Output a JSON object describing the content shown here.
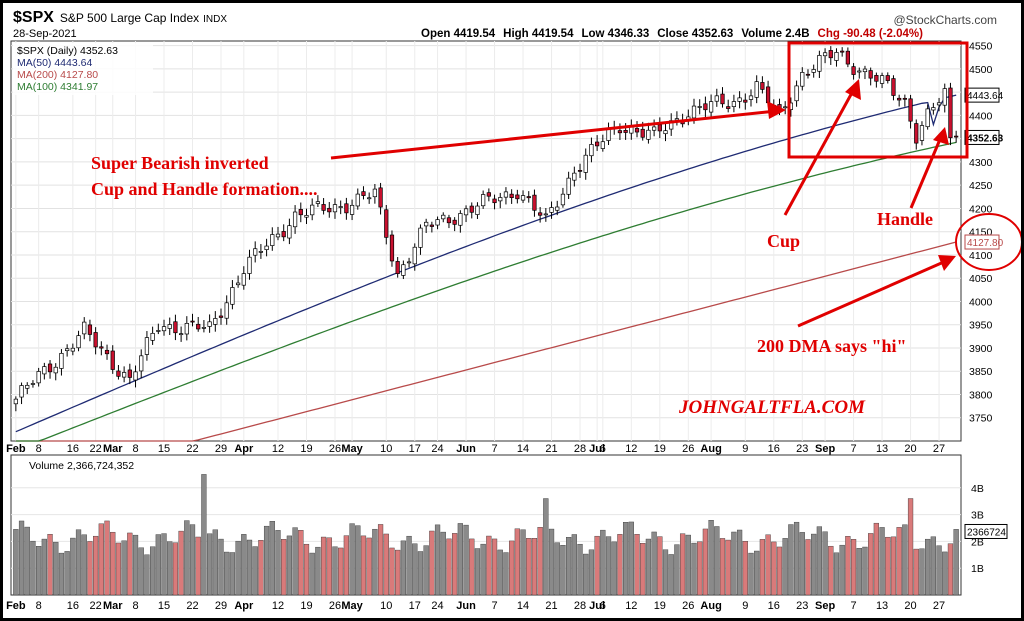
{
  "header": {
    "symbol": "$SPX",
    "name": "S&P 500 Large Cap Index",
    "exchange": "INDX",
    "date": "28-Sep-2021",
    "watermark": "@StockCharts.com",
    "open": "Open 4419.54",
    "high": "High 4419.54",
    "low": "Low 4346.33",
    "close": "Close 4352.63",
    "volume": "Volume 2.4B",
    "chg": "Chg -90.48 (-2.04%)"
  },
  "legend": {
    "price": "$SPX (Daily) 4352.63",
    "ma50": "MA(50) 4443.64",
    "ma200": "MA(200) 4127.80",
    "ma100": "MA(100) 4341.97",
    "volume": "Volume 2,366,724,352"
  },
  "annotations": {
    "pattern_line1": "Super Bearish inverted",
    "pattern_line2": "Cup and Handle formation....",
    "cup": "Cup",
    "handle": "Handle",
    "dma": "200 DMA says \"hi\"",
    "site": "JOHNGALTFLA.COM"
  },
  "colors": {
    "up": "#ffffff",
    "down": "#c8102e",
    "ma50": "#1f2b73",
    "ma100": "#2e7d32",
    "ma200": "#b84a4a",
    "annotation": "#e00000",
    "vol_up": "#8a8a8a",
    "vol_down": "#d97a7a"
  },
  "chart_data": {
    "type": "candlestick",
    "period": "daily",
    "ylim": [
      3700,
      4560
    ],
    "yticks": [
      3750,
      3800,
      3850,
      3900,
      3950,
      4000,
      4050,
      4100,
      4150,
      4200,
      4250,
      4300,
      4350,
      4400,
      4450,
      4500,
      4550
    ],
    "price_labels": [
      "4443.64",
      "4352.63",
      "4127.80"
    ],
    "x_labels": [
      {
        "label": "Feb",
        "bold": true
      },
      {
        "label": "8"
      },
      {
        "label": "16"
      },
      {
        "label": "22"
      },
      {
        "label": "Mar",
        "bold": true
      },
      {
        "label": "8"
      },
      {
        "label": "15"
      },
      {
        "label": "22"
      },
      {
        "label": "29"
      },
      {
        "label": "Apr",
        "bold": true
      },
      {
        "label": "12"
      },
      {
        "label": "19"
      },
      {
        "label": "26"
      },
      {
        "label": "May",
        "bold": true
      },
      {
        "label": "10"
      },
      {
        "label": "17"
      },
      {
        "label": "24"
      },
      {
        "label": "Jun",
        "bold": true
      },
      {
        "label": "7"
      },
      {
        "label": "14"
      },
      {
        "label": "21"
      },
      {
        "label": "28"
      },
      {
        "label": "Jul",
        "bold": true
      },
      {
        "label": "6"
      },
      {
        "label": "12"
      },
      {
        "label": "19"
      },
      {
        "label": "26"
      },
      {
        "label": "Aug",
        "bold": true
      },
      {
        "label": "9"
      },
      {
        "label": "16"
      },
      {
        "label": "23"
      },
      {
        "label": "Sep",
        "bold": true
      },
      {
        "label": "7"
      },
      {
        "label": "13"
      },
      {
        "label": "20"
      },
      {
        "label": "27"
      }
    ],
    "x_label_pos": [
      0,
      4,
      10,
      14,
      17,
      21,
      26,
      31,
      36,
      40,
      46,
      51,
      56,
      59,
      65,
      70,
      74,
      79,
      84,
      89,
      94,
      99,
      102,
      103,
      108,
      113,
      118,
      122,
      128,
      133,
      138,
      142,
      147,
      152,
      157,
      162
    ],
    "key_closes": [
      {
        "day": 0,
        "close": 3790
      },
      {
        "day": 12,
        "close": 3935
      },
      {
        "day": 20,
        "close": 3830
      },
      {
        "day": 25,
        "close": 3950
      },
      {
        "day": 34,
        "close": 3940
      },
      {
        "day": 40,
        "close": 4070
      },
      {
        "day": 49,
        "close": 4185
      },
      {
        "day": 58,
        "close": 4210
      },
      {
        "day": 63,
        "close": 4230
      },
      {
        "day": 67,
        "close": 4060
      },
      {
        "day": 72,
        "close": 4160
      },
      {
        "day": 80,
        "close": 4200
      },
      {
        "day": 88,
        "close": 4240
      },
      {
        "day": 93,
        "close": 4170
      },
      {
        "day": 98,
        "close": 4285
      },
      {
        "day": 106,
        "close": 4380
      },
      {
        "day": 112,
        "close": 4355
      },
      {
        "day": 118,
        "close": 4410
      },
      {
        "day": 126,
        "close": 4430
      },
      {
        "day": 130,
        "close": 4460
      },
      {
        "day": 134,
        "close": 4400
      },
      {
        "day": 138,
        "close": 4490
      },
      {
        "day": 144,
        "close": 4535
      },
      {
        "day": 148,
        "close": 4500
      },
      {
        "day": 153,
        "close": 4460
      },
      {
        "day": 156,
        "close": 4430
      },
      {
        "day": 158,
        "close": 4360
      },
      {
        "day": 160,
        "close": 4400
      },
      {
        "day": 163,
        "close": 4443
      },
      {
        "day": 164,
        "close": 4352
      }
    ],
    "ma50_endpoints": [
      3720,
      4443.64
    ],
    "ma100_endpoints": [
      3680,
      4341.97
    ],
    "ma200_endpoints": [
      3600,
      4127.8
    ],
    "volume": {
      "ylabel_ticks": [
        "1B",
        "2B",
        "3B",
        "4B"
      ],
      "last_label": "2366724",
      "spikes": [
        {
          "day": 33,
          "value": 4.5
        },
        {
          "day": 93,
          "value": 3.6
        },
        {
          "day": 157,
          "value": 3.6
        }
      ]
    }
  }
}
